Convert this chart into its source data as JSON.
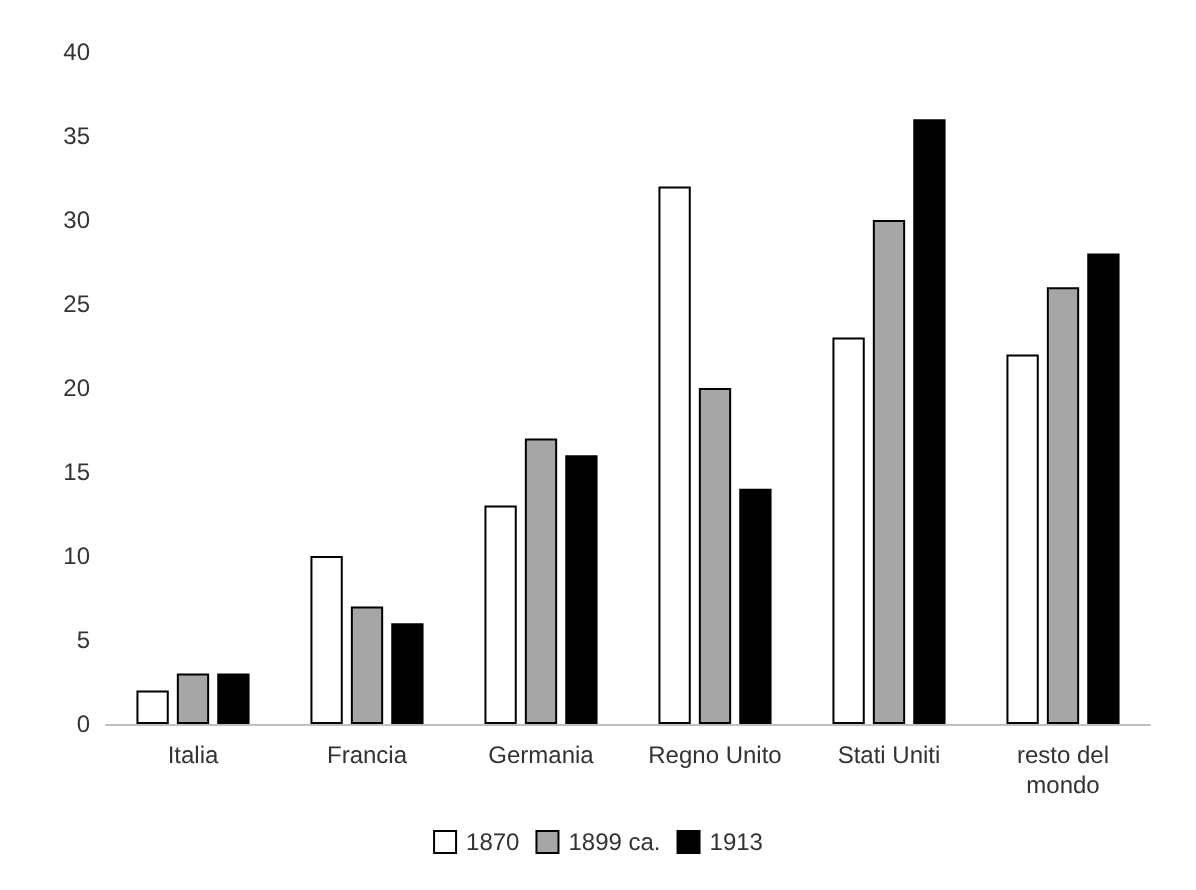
{
  "chart_data": {
    "type": "bar",
    "categories": [
      "Italia",
      "Francia",
      "Germania",
      "Regno Unito",
      "Stati Uniti",
      "resto del\nmondo"
    ],
    "series": [
      {
        "name": "1870",
        "color": "#ffffff",
        "values": [
          2,
          10,
          13,
          32,
          23,
          22
        ]
      },
      {
        "name": "1899 ca.",
        "color": "#a6a6a6",
        "values": [
          3,
          7,
          17,
          20,
          30,
          26
        ]
      },
      {
        "name": "1913",
        "color": "#000000",
        "values": [
          3,
          6,
          16,
          14,
          36,
          28
        ]
      }
    ],
    "ylim": [
      0,
      40
    ],
    "yticks": [
      0,
      5,
      10,
      15,
      20,
      25,
      30,
      35,
      40
    ],
    "grid": false,
    "legend": "bottom"
  }
}
